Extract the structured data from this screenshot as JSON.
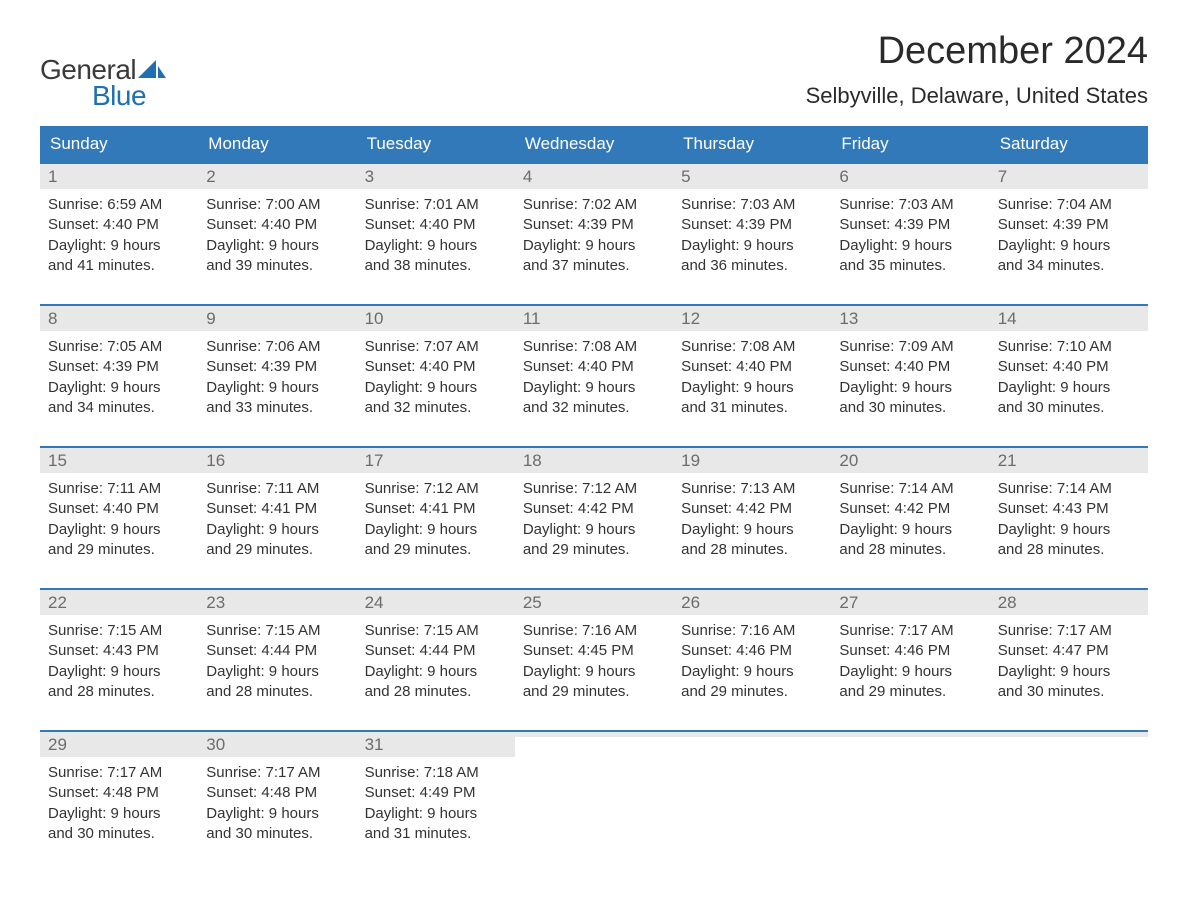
{
  "logo": {
    "text1": "General",
    "text2": "Blue",
    "sail_color": "#1f6fb2"
  },
  "title": "December 2024",
  "location": "Selbyville, Delaware, United States",
  "colors": {
    "header_bg": "#3179b9",
    "header_text": "#ffffff",
    "daynum_bg": "#e8e8e8",
    "daynum_text": "#6c6c6c",
    "body_text": "#333333",
    "week_border": "#3179b9"
  },
  "day_headers": [
    "Sunday",
    "Monday",
    "Tuesday",
    "Wednesday",
    "Thursday",
    "Friday",
    "Saturday"
  ],
  "weeks": [
    [
      {
        "n": "1",
        "sunrise": "Sunrise: 6:59 AM",
        "sunset": "Sunset: 4:40 PM",
        "dl1": "Daylight: 9 hours",
        "dl2": "and 41 minutes."
      },
      {
        "n": "2",
        "sunrise": "Sunrise: 7:00 AM",
        "sunset": "Sunset: 4:40 PM",
        "dl1": "Daylight: 9 hours",
        "dl2": "and 39 minutes."
      },
      {
        "n": "3",
        "sunrise": "Sunrise: 7:01 AM",
        "sunset": "Sunset: 4:40 PM",
        "dl1": "Daylight: 9 hours",
        "dl2": "and 38 minutes."
      },
      {
        "n": "4",
        "sunrise": "Sunrise: 7:02 AM",
        "sunset": "Sunset: 4:39 PM",
        "dl1": "Daylight: 9 hours",
        "dl2": "and 37 minutes."
      },
      {
        "n": "5",
        "sunrise": "Sunrise: 7:03 AM",
        "sunset": "Sunset: 4:39 PM",
        "dl1": "Daylight: 9 hours",
        "dl2": "and 36 minutes."
      },
      {
        "n": "6",
        "sunrise": "Sunrise: 7:03 AM",
        "sunset": "Sunset: 4:39 PM",
        "dl1": "Daylight: 9 hours",
        "dl2": "and 35 minutes."
      },
      {
        "n": "7",
        "sunrise": "Sunrise: 7:04 AM",
        "sunset": "Sunset: 4:39 PM",
        "dl1": "Daylight: 9 hours",
        "dl2": "and 34 minutes."
      }
    ],
    [
      {
        "n": "8",
        "sunrise": "Sunrise: 7:05 AM",
        "sunset": "Sunset: 4:39 PM",
        "dl1": "Daylight: 9 hours",
        "dl2": "and 34 minutes."
      },
      {
        "n": "9",
        "sunrise": "Sunrise: 7:06 AM",
        "sunset": "Sunset: 4:39 PM",
        "dl1": "Daylight: 9 hours",
        "dl2": "and 33 minutes."
      },
      {
        "n": "10",
        "sunrise": "Sunrise: 7:07 AM",
        "sunset": "Sunset: 4:40 PM",
        "dl1": "Daylight: 9 hours",
        "dl2": "and 32 minutes."
      },
      {
        "n": "11",
        "sunrise": "Sunrise: 7:08 AM",
        "sunset": "Sunset: 4:40 PM",
        "dl1": "Daylight: 9 hours",
        "dl2": "and 32 minutes."
      },
      {
        "n": "12",
        "sunrise": "Sunrise: 7:08 AM",
        "sunset": "Sunset: 4:40 PM",
        "dl1": "Daylight: 9 hours",
        "dl2": "and 31 minutes."
      },
      {
        "n": "13",
        "sunrise": "Sunrise: 7:09 AM",
        "sunset": "Sunset: 4:40 PM",
        "dl1": "Daylight: 9 hours",
        "dl2": "and 30 minutes."
      },
      {
        "n": "14",
        "sunrise": "Sunrise: 7:10 AM",
        "sunset": "Sunset: 4:40 PM",
        "dl1": "Daylight: 9 hours",
        "dl2": "and 30 minutes."
      }
    ],
    [
      {
        "n": "15",
        "sunrise": "Sunrise: 7:11 AM",
        "sunset": "Sunset: 4:40 PM",
        "dl1": "Daylight: 9 hours",
        "dl2": "and 29 minutes."
      },
      {
        "n": "16",
        "sunrise": "Sunrise: 7:11 AM",
        "sunset": "Sunset: 4:41 PM",
        "dl1": "Daylight: 9 hours",
        "dl2": "and 29 minutes."
      },
      {
        "n": "17",
        "sunrise": "Sunrise: 7:12 AM",
        "sunset": "Sunset: 4:41 PM",
        "dl1": "Daylight: 9 hours",
        "dl2": "and 29 minutes."
      },
      {
        "n": "18",
        "sunrise": "Sunrise: 7:12 AM",
        "sunset": "Sunset: 4:42 PM",
        "dl1": "Daylight: 9 hours",
        "dl2": "and 29 minutes."
      },
      {
        "n": "19",
        "sunrise": "Sunrise: 7:13 AM",
        "sunset": "Sunset: 4:42 PM",
        "dl1": "Daylight: 9 hours",
        "dl2": "and 28 minutes."
      },
      {
        "n": "20",
        "sunrise": "Sunrise: 7:14 AM",
        "sunset": "Sunset: 4:42 PM",
        "dl1": "Daylight: 9 hours",
        "dl2": "and 28 minutes."
      },
      {
        "n": "21",
        "sunrise": "Sunrise: 7:14 AM",
        "sunset": "Sunset: 4:43 PM",
        "dl1": "Daylight: 9 hours",
        "dl2": "and 28 minutes."
      }
    ],
    [
      {
        "n": "22",
        "sunrise": "Sunrise: 7:15 AM",
        "sunset": "Sunset: 4:43 PM",
        "dl1": "Daylight: 9 hours",
        "dl2": "and 28 minutes."
      },
      {
        "n": "23",
        "sunrise": "Sunrise: 7:15 AM",
        "sunset": "Sunset: 4:44 PM",
        "dl1": "Daylight: 9 hours",
        "dl2": "and 28 minutes."
      },
      {
        "n": "24",
        "sunrise": "Sunrise: 7:15 AM",
        "sunset": "Sunset: 4:44 PM",
        "dl1": "Daylight: 9 hours",
        "dl2": "and 28 minutes."
      },
      {
        "n": "25",
        "sunrise": "Sunrise: 7:16 AM",
        "sunset": "Sunset: 4:45 PM",
        "dl1": "Daylight: 9 hours",
        "dl2": "and 29 minutes."
      },
      {
        "n": "26",
        "sunrise": "Sunrise: 7:16 AM",
        "sunset": "Sunset: 4:46 PM",
        "dl1": "Daylight: 9 hours",
        "dl2": "and 29 minutes."
      },
      {
        "n": "27",
        "sunrise": "Sunrise: 7:17 AM",
        "sunset": "Sunset: 4:46 PM",
        "dl1": "Daylight: 9 hours",
        "dl2": "and 29 minutes."
      },
      {
        "n": "28",
        "sunrise": "Sunrise: 7:17 AM",
        "sunset": "Sunset: 4:47 PM",
        "dl1": "Daylight: 9 hours",
        "dl2": "and 30 minutes."
      }
    ],
    [
      {
        "n": "29",
        "sunrise": "Sunrise: 7:17 AM",
        "sunset": "Sunset: 4:48 PM",
        "dl1": "Daylight: 9 hours",
        "dl2": "and 30 minutes."
      },
      {
        "n": "30",
        "sunrise": "Sunrise: 7:17 AM",
        "sunset": "Sunset: 4:48 PM",
        "dl1": "Daylight: 9 hours",
        "dl2": "and 30 minutes."
      },
      {
        "n": "31",
        "sunrise": "Sunrise: 7:18 AM",
        "sunset": "Sunset: 4:49 PM",
        "dl1": "Daylight: 9 hours",
        "dl2": "and 31 minutes."
      },
      {
        "empty": true
      },
      {
        "empty": true
      },
      {
        "empty": true
      },
      {
        "empty": true
      }
    ]
  ]
}
